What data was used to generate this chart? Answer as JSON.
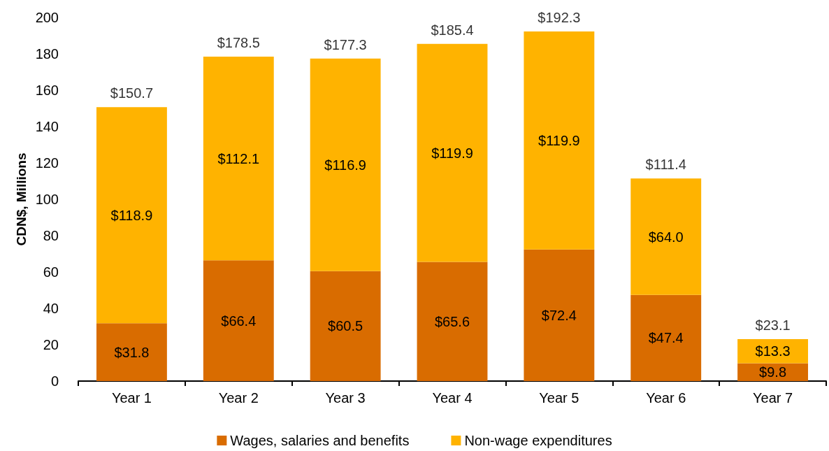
{
  "chart_data": {
    "type": "bar",
    "ylabel": "CDN$, Millions",
    "categories": [
      "Year 1",
      "Year 2",
      "Year 3",
      "Year 4",
      "Year 5",
      "Year 6",
      "Year 7"
    ],
    "stacked": true,
    "series": [
      {
        "name": "Wages, salaries and benefits",
        "color": "#d96c00",
        "values": [
          31.8,
          66.4,
          60.5,
          65.6,
          72.4,
          47.4,
          9.8
        ],
        "value_labels": [
          "$31.8",
          "$66.4",
          "$60.5",
          "$65.6",
          "$72.4",
          "$47.4",
          "$9.8"
        ]
      },
      {
        "name": "Non-wage expenditures",
        "color": "#ffb300",
        "values": [
          118.9,
          112.1,
          116.9,
          119.9,
          119.9,
          64.0,
          13.3
        ],
        "value_labels": [
          "$118.9",
          "$112.1",
          "$116.9",
          "$119.9",
          "$119.9",
          "$64.0",
          "$13.3"
        ]
      }
    ],
    "totals": [
      "$150.7",
      "$178.5",
      "$177.3",
      "$185.4",
      "$192.3",
      "$111.4",
      "$23.1"
    ],
    "ylim": [
      0,
      200
    ],
    "yticks": [
      0,
      20,
      40,
      60,
      80,
      100,
      120,
      140,
      160,
      180,
      200
    ],
    "grid": false,
    "legend": "bottom"
  }
}
